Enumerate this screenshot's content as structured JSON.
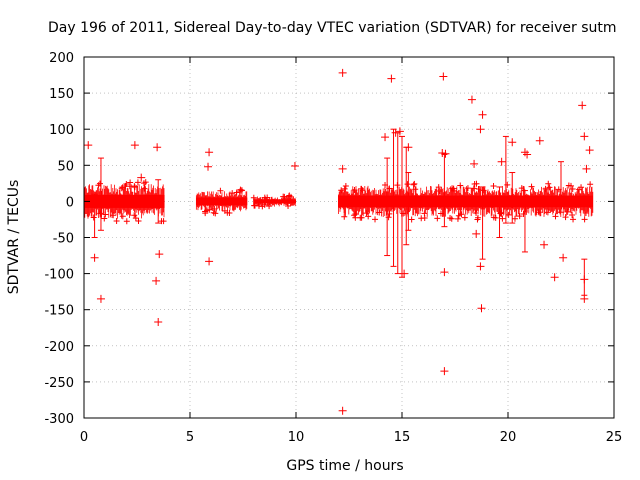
{
  "chart_data": {
    "type": "scatter",
    "title": "Day 196 of 2011, Sidereal Day-to-day VTEC variation (SDTVAR) for receiver sutm",
    "xlabel": "GPS time / hours",
    "ylabel": "SDTVAR / TECUs",
    "xlim": [
      0,
      25
    ],
    "ylim": [
      -300,
      200
    ],
    "xticks": [
      0,
      5,
      10,
      15,
      20,
      25
    ],
    "yticks": [
      -300,
      -250,
      -200,
      -150,
      -100,
      -50,
      0,
      50,
      100,
      150,
      200
    ],
    "grid": true,
    "marker": "+",
    "color": "#ff0000",
    "dense_bands": [
      {
        "x_start": 0.0,
        "x_end": 3.8,
        "y_min": -20,
        "y_max": 20
      },
      {
        "x_start": 5.3,
        "x_end": 7.7,
        "y_min": -12,
        "y_max": 12
      },
      {
        "x_start": 8.0,
        "x_end": 10.0,
        "y_min": -6,
        "y_max": 6
      },
      {
        "x_start": 12.0,
        "x_end": 24.0,
        "y_min": -18,
        "y_max": 18
      }
    ],
    "error_bars": [
      {
        "x": 0.5,
        "y_low": -50,
        "y_high": 10
      },
      {
        "x": 0.8,
        "y_low": -40,
        "y_high": 60
      },
      {
        "x": 3.5,
        "y_low": -30,
        "y_high": 30
      },
      {
        "x": 14.3,
        "y_low": -75,
        "y_high": 60
      },
      {
        "x": 14.6,
        "y_low": -90,
        "y_high": 100
      },
      {
        "x": 14.8,
        "y_low": -100,
        "y_high": 95
      },
      {
        "x": 15.0,
        "y_low": -105,
        "y_high": 90
      },
      {
        "x": 15.2,
        "y_low": -60,
        "y_high": 75
      },
      {
        "x": 15.3,
        "y_low": -40,
        "y_high": 40
      },
      {
        "x": 17.0,
        "y_low": -35,
        "y_high": 65
      },
      {
        "x": 18.8,
        "y_low": -80,
        "y_high": 20
      },
      {
        "x": 19.6,
        "y_low": -50,
        "y_high": 20
      },
      {
        "x": 19.9,
        "y_low": -30,
        "y_high": 90
      },
      {
        "x": 20.2,
        "y_low": -30,
        "y_high": 40
      },
      {
        "x": 20.8,
        "y_low": -70,
        "y_high": 15
      },
      {
        "x": 22.5,
        "y_low": -15,
        "y_high": 55
      },
      {
        "x": 23.6,
        "y_low": -130,
        "y_high": -80
      }
    ],
    "points": [
      [
        0.2,
        78
      ],
      [
        0.5,
        -78
      ],
      [
        0.8,
        -135
      ],
      [
        2.4,
        78
      ],
      [
        2.7,
        33
      ],
      [
        3.45,
        75
      ],
      [
        3.4,
        -110
      ],
      [
        3.5,
        -167
      ],
      [
        3.55,
        -73
      ],
      [
        5.9,
        68
      ],
      [
        5.85,
        48
      ],
      [
        5.9,
        -83
      ],
      [
        9.95,
        49
      ],
      [
        12.2,
        178
      ],
      [
        12.2,
        -290
      ],
      [
        12.2,
        45
      ],
      [
        14.2,
        89
      ],
      [
        14.5,
        170
      ],
      [
        14.7,
        95
      ],
      [
        14.9,
        97
      ],
      [
        15.3,
        75
      ],
      [
        15.1,
        -100
      ],
      [
        16.95,
        173
      ],
      [
        16.9,
        67
      ],
      [
        17.05,
        66
      ],
      [
        17.0,
        -98
      ],
      [
        17.0,
        -235
      ],
      [
        18.3,
        141
      ],
      [
        18.4,
        52
      ],
      [
        18.8,
        120
      ],
      [
        18.7,
        100
      ],
      [
        18.75,
        -148
      ],
      [
        18.7,
        -90
      ],
      [
        18.5,
        -45
      ],
      [
        19.7,
        55
      ],
      [
        20.2,
        82
      ],
      [
        20.8,
        68
      ],
      [
        20.9,
        65
      ],
      [
        21.5,
        84
      ],
      [
        21.7,
        -60
      ],
      [
        22.2,
        -105
      ],
      [
        22.6,
        -78
      ],
      [
        23.5,
        133
      ],
      [
        23.6,
        90
      ],
      [
        23.85,
        71
      ],
      [
        23.7,
        45
      ],
      [
        23.6,
        -108
      ],
      [
        23.6,
        -135
      ]
    ]
  }
}
